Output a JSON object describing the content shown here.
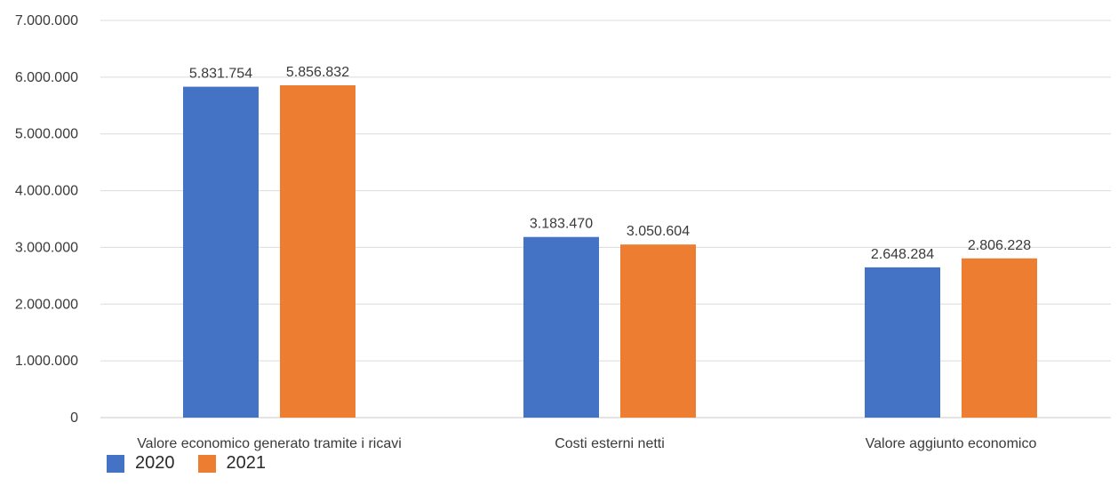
{
  "chart_data": {
    "type": "bar",
    "categories": [
      "Valore economico generato tramite i ricavi",
      "Costi esterni netti",
      "Valore aggiunto economico"
    ],
    "series": [
      {
        "name": "2020",
        "color": "#4472C4",
        "values": [
          5831754,
          3183470,
          2648284
        ],
        "labels": [
          "5.831.754",
          "3.183.470",
          "2.648.284"
        ]
      },
      {
        "name": "2021",
        "color": "#ED7D31",
        "values": [
          5856832,
          3050604,
          2806228
        ],
        "labels": [
          "5.856.832",
          "3.050.604",
          "2.806.228"
        ]
      }
    ],
    "ylim": [
      0,
      7000000
    ],
    "yticks": [
      0,
      1000000,
      2000000,
      3000000,
      4000000,
      5000000,
      6000000,
      7000000
    ],
    "ytick_labels": [
      "0",
      "1.000.000",
      "2.000.000",
      "3.000.000",
      "4.000.000",
      "5.000.000",
      "6.000.000",
      "7.000.000"
    ],
    "grid": true,
    "legend_position": "bottom-left",
    "title": "",
    "xlabel": "",
    "ylabel": ""
  }
}
